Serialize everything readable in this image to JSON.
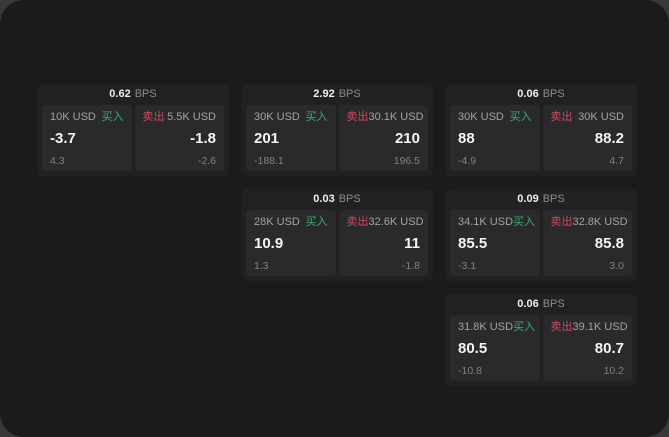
{
  "window": {
    "bps_unit": "BPS",
    "buy_label": "买入",
    "sell_label": "卖出"
  },
  "colors": {
    "backdrop": "#38383a",
    "page_bg": "#1b1b1d",
    "card_bg": "#212123",
    "panel_bg": "#2a2a2c",
    "buy_green": "#3bae6c",
    "sell_red": "#ce4a60",
    "primary_text": "#f4f4f4",
    "muted_text": "#a3a3a5",
    "dim_text": "#828284"
  },
  "cards": [
    {
      "bps": "0.62",
      "buy": {
        "size": "10K USD",
        "price": "-3.7",
        "change": "4.3"
      },
      "sell": {
        "size": "5.5K USD",
        "price": "-1.8",
        "change": "-2.6"
      }
    },
    {
      "bps": "2.92",
      "buy": {
        "size": "30K USD",
        "price": "201",
        "change": "-188.1"
      },
      "sell": {
        "size": "30.1K USD",
        "price": "210",
        "change": "196.5"
      }
    },
    {
      "bps": "0.06",
      "buy": {
        "size": "30K USD",
        "price": "88",
        "change": "-4.9"
      },
      "sell": {
        "size": "30K USD",
        "price": "88.2",
        "change": "4.7"
      }
    },
    {
      "bps": "0.03",
      "buy": {
        "size": "28K USD",
        "price": "10.9",
        "change": "1.3"
      },
      "sell": {
        "size": "32.6K USD",
        "price": "11",
        "change": "-1.8"
      }
    },
    {
      "bps": "0.09",
      "buy": {
        "size": "34.1K USD",
        "price": "85.5",
        "change": "-3.1"
      },
      "sell": {
        "size": "32.8K USD",
        "price": "85.8",
        "change": "3.0"
      }
    },
    {
      "bps": "0.06",
      "buy": {
        "size": "31.8K USD",
        "price": "80.5",
        "change": "-10.8"
      },
      "sell": {
        "size": "39.1K USD",
        "price": "80.7",
        "change": "10.2"
      }
    }
  ]
}
